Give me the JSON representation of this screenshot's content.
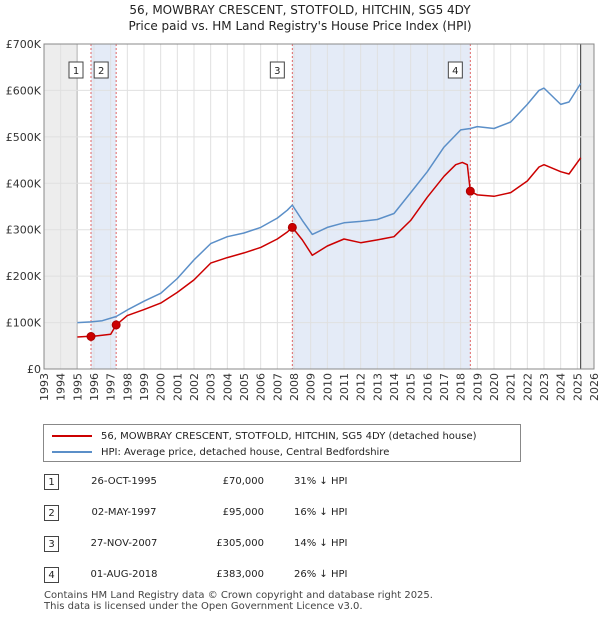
{
  "chart_data": {
    "type": "line",
    "title": "56, MOWBRAY CRESCENT, STOTFOLD, HITCHIN, SG5 4DY",
    "subtitle": "Price paid vs. HM Land Registry's House Price Index (HPI)",
    "xlim": [
      1993,
      2026
    ],
    "ylim": [
      0,
      700000
    ],
    "x_ticks": [
      "1993",
      "1994",
      "1995",
      "1996",
      "1997",
      "1998",
      "1999",
      "2000",
      "2001",
      "2002",
      "2003",
      "2004",
      "2005",
      "2006",
      "2007",
      "2008",
      "2009",
      "2010",
      "2011",
      "2012",
      "2013",
      "2014",
      "2015",
      "2016",
      "2017",
      "2018",
      "2019",
      "2020",
      "2021",
      "2022",
      "2023",
      "2024",
      "2025",
      "2026"
    ],
    "y_ticks": [
      {
        "value": 0,
        "label": "£0"
      },
      {
        "value": 100000,
        "label": "£100K"
      },
      {
        "value": 200000,
        "label": "£200K"
      },
      {
        "value": 300000,
        "label": "£300K"
      },
      {
        "value": 400000,
        "label": "£400K"
      },
      {
        "value": 500000,
        "label": "£500K"
      },
      {
        "value": 600000,
        "label": "£600K"
      },
      {
        "value": 700000,
        "label": "£700K"
      }
    ],
    "data_range": [
      1995.0,
      2025.2
    ],
    "shaded_ranges": [
      [
        1995.82,
        1997.33
      ],
      [
        2007.9,
        2018.58
      ]
    ],
    "series": [
      {
        "name": "56, MOWBRAY CRESCENT, STOTFOLD, HITCHIN, SG5 4DY (detached house)",
        "color": "#cc0000",
        "x": [
          1995.0,
          1995.5,
          1995.82,
          1996.3,
          1997.0,
          1997.33,
          1998.0,
          1999.0,
          2000.0,
          2001.0,
          2002.0,
          2003.0,
          2004.0,
          2005.0,
          2006.0,
          2007.0,
          2007.6,
          2007.9,
          2008.5,
          2009.1,
          2010.0,
          2011.0,
          2012.0,
          2013.0,
          2014.0,
          2015.0,
          2016.0,
          2017.0,
          2017.7,
          2018.1,
          2018.4,
          2018.58,
          2019.0,
          2020.0,
          2021.0,
          2022.0,
          2022.7,
          2023.0,
          2024.0,
          2024.5,
          2025.2
        ],
        "values": [
          69000,
          70000,
          70000,
          72000,
          75000,
          95000,
          115000,
          128000,
          142000,
          165000,
          192000,
          228000,
          240000,
          250000,
          262000,
          280000,
          295000,
          305000,
          278000,
          245000,
          265000,
          280000,
          272000,
          278000,
          285000,
          320000,
          370000,
          415000,
          440000,
          445000,
          440000,
          383000,
          375000,
          372000,
          380000,
          405000,
          435000,
          440000,
          425000,
          420000,
          455000
        ]
      },
      {
        "name": "HPI: Average price, detached house, Central Bedfordshire",
        "color": "#5b8fc8",
        "x": [
          1995.0,
          1995.82,
          1996.5,
          1997.33,
          1998.0,
          1999.0,
          2000.0,
          2001.0,
          2002.0,
          2003.0,
          2004.0,
          2005.0,
          2006.0,
          2007.0,
          2007.6,
          2007.9,
          2008.5,
          2009.1,
          2010.0,
          2011.0,
          2012.0,
          2013.0,
          2014.0,
          2015.0,
          2016.0,
          2017.0,
          2018.0,
          2018.58,
          2019.0,
          2020.0,
          2021.0,
          2022.0,
          2022.7,
          2023.0,
          2024.0,
          2024.5,
          2025.2
        ],
        "values": [
          100000,
          101500,
          104000,
          113000,
          127000,
          146000,
          163000,
          195000,
          235000,
          270000,
          285000,
          293000,
          305000,
          325000,
          342000,
          353000,
          320000,
          290000,
          305000,
          315000,
          318000,
          322000,
          335000,
          380000,
          425000,
          478000,
          515000,
          518000,
          522000,
          518000,
          532000,
          570000,
          600000,
          605000,
          570000,
          575000,
          615000
        ]
      }
    ],
    "annotations": [
      {
        "label": "1",
        "x": 1995.82,
        "value": 70000
      },
      {
        "label": "2",
        "x": 1997.33,
        "value": 95000
      },
      {
        "label": "3",
        "x": 2007.9,
        "value": 305000
      },
      {
        "label": "4",
        "x": 2018.58,
        "value": 383000
      }
    ]
  },
  "legend": {
    "entries": [
      {
        "label": "56, MOWBRAY CRESCENT, STOTFOLD, HITCHIN, SG5 4DY (detached house)",
        "color": "#cc0000"
      },
      {
        "label": "HPI: Average price, detached house, Central Bedfordshire",
        "color": "#5b8fc8"
      }
    ]
  },
  "transactions": [
    {
      "num": "1",
      "date": "26-OCT-1995",
      "price": "£70,000",
      "hpi": "31% ↓ HPI"
    },
    {
      "num": "2",
      "date": "02-MAY-1997",
      "price": "£95,000",
      "hpi": "16% ↓ HPI"
    },
    {
      "num": "3",
      "date": "27-NOV-2007",
      "price": "£305,000",
      "hpi": "14% ↓ HPI"
    },
    {
      "num": "4",
      "date": "01-AUG-2018",
      "price": "£383,000",
      "hpi": "26% ↓ HPI"
    }
  ],
  "footer": {
    "line1": "Contains HM Land Registry data © Crown copyright and database right 2025.",
    "line2": "This data is licensed under the Open Government Licence v3.0."
  }
}
